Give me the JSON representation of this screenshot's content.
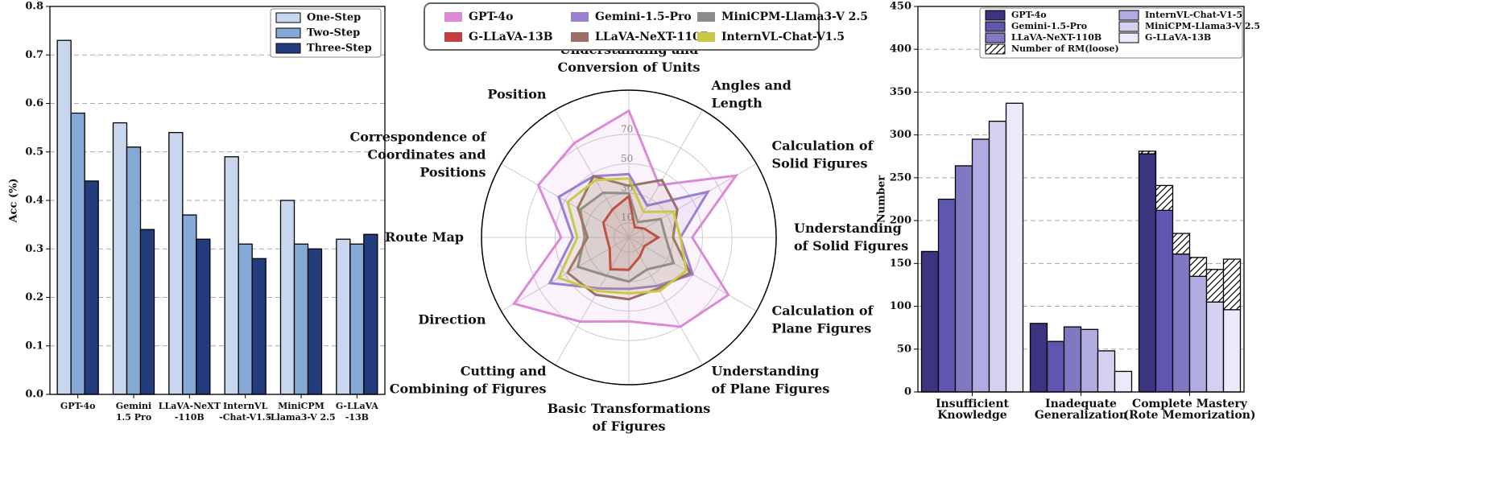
{
  "chart_data": [
    {
      "type": "bar",
      "ylabel": "Acc (%)",
      "categories": [
        [
          "GPT-4o"
        ],
        [
          "Gemini",
          "1.5 Pro"
        ],
        [
          "LLaVA-NeXT",
          "-110B"
        ],
        [
          "InternVL",
          "-Chat-V1.5"
        ],
        [
          "MiniCPM",
          "-Llama3-V 2.5"
        ],
        [
          "G-LLaVA",
          "-13B"
        ]
      ],
      "series": [
        {
          "name": "One-Step",
          "color": "#c9d7ee",
          "values": [
            0.73,
            0.56,
            0.54,
            0.49,
            0.4,
            0.32
          ]
        },
        {
          "name": "Two-Step",
          "color": "#84a9d4",
          "values": [
            0.58,
            0.51,
            0.37,
            0.31,
            0.31,
            0.31
          ]
        },
        {
          "name": "Three-Step",
          "color": "#233d7c",
          "values": [
            0.44,
            0.34,
            0.32,
            0.28,
            0.3,
            0.33
          ]
        }
      ],
      "ylim": [
        0,
        0.8
      ],
      "yticks": [
        {
          "value": 0,
          "label": "0.0"
        },
        0.1,
        0.2,
        0.3,
        0.4,
        0.5,
        0.6,
        0.7,
        0.8
      ],
      "grid": true,
      "legend": "upper right"
    },
    {
      "type": "radar",
      "axes": [
        [
          "Understanding and",
          "Conversion of  Units"
        ],
        [
          "Angles and",
          "Length"
        ],
        [
          "Calculation of",
          "Solid Figures"
        ],
        [
          "Understanding",
          "of Solid Figures"
        ],
        [
          "Calculation of",
          "Plane Figures"
        ],
        [
          "Understanding",
          "of Plane Figures"
        ],
        [
          "Basic Transformations",
          "of  Figures"
        ],
        [
          "Cutting and",
          "Combining of  Figures"
        ],
        [
          "Direction"
        ],
        [
          "Route Map"
        ],
        [
          "Correspondence of",
          "Coordinates and",
          "Positions"
        ],
        [
          "Position"
        ]
      ],
      "rlim": [
        0,
        100
      ],
      "rticks": [
        10,
        30,
        50,
        70
      ],
      "series": [
        {
          "name": "GPT-4o",
          "color": "#d98bd3",
          "values": [
            86,
            41,
            84,
            43,
            78,
            70,
            57,
            66,
            90,
            46,
            71,
            74
          ]
        },
        {
          "name": "Gemini-1.5-Pro",
          "color": "#9a80d0",
          "values": [
            43,
            25,
            62,
            35,
            50,
            38,
            35,
            40,
            62,
            38,
            55,
            48
          ]
        },
        {
          "name": "MiniCPM-Llama3-V 2.5",
          "color": "#8c8c8c",
          "values": [
            30,
            12,
            25,
            25,
            35,
            25,
            30,
            30,
            40,
            30,
            38,
            35
          ]
        },
        {
          "name": "G-LLaVA-13B",
          "color": "#c0413f",
          "values": [
            28,
            8,
            12,
            20,
            12,
            15,
            22,
            25,
            15,
            15,
            20,
            22
          ]
        },
        {
          "name": "LLaVA-NeXT-110B",
          "color": "#9a6f68",
          "values": [
            35,
            45,
            38,
            30,
            48,
            40,
            42,
            45,
            48,
            28,
            40,
            48
          ]
        },
        {
          "name": "InternVL-Chat-V1.5",
          "color": "#c9c84a",
          "values": [
            40,
            20,
            35,
            35,
            45,
            42,
            38,
            42,
            55,
            35,
            48,
            45
          ]
        }
      ]
    },
    {
      "type": "bar",
      "ylabel": "Number",
      "categories": [
        [
          "Insufficient",
          "Knowledge"
        ],
        [
          "Inadequate",
          "Generalization"
        ],
        [
          "Complete Mastery",
          "(Rote Memorization)"
        ]
      ],
      "stacked_name": "Number of RM(loose)",
      "series": [
        {
          "name": "GPT-4o",
          "color": "#3b3480",
          "values": [
            164,
            80,
            278
          ],
          "stacked": [
            null,
            null,
            3
          ]
        },
        {
          "name": "Gemini-1.5-Pro",
          "color": "#5f56b0",
          "values": [
            225,
            59,
            212
          ],
          "stacked": [
            null,
            null,
            29
          ]
        },
        {
          "name": "LLaVA-NeXT-110B",
          "color": "#7f78c2",
          "values": [
            264,
            76,
            161
          ],
          "stacked": [
            null,
            null,
            24
          ]
        },
        {
          "name": "InternVL-Chat-V1-5",
          "color": "#b0abe0",
          "values": [
            295,
            73,
            135
          ],
          "stacked": [
            null,
            null,
            22
          ]
        },
        {
          "name": "MiniCPM-Llama3-V 2.5",
          "color": "#d3d0f0",
          "values": [
            316,
            48,
            105
          ],
          "stacked": [
            null,
            null,
            38
          ]
        },
        {
          "name": "G-LLaVA-13B",
          "color": "#ebe9fa",
          "values": [
            337,
            24,
            96
          ],
          "stacked": [
            null,
            null,
            59
          ]
        }
      ],
      "ylim": [
        0,
        450
      ],
      "yticks": [
        0,
        50,
        100,
        150,
        200,
        250,
        300,
        350,
        400,
        450
      ],
      "grid": true,
      "legend": "upper right"
    }
  ]
}
